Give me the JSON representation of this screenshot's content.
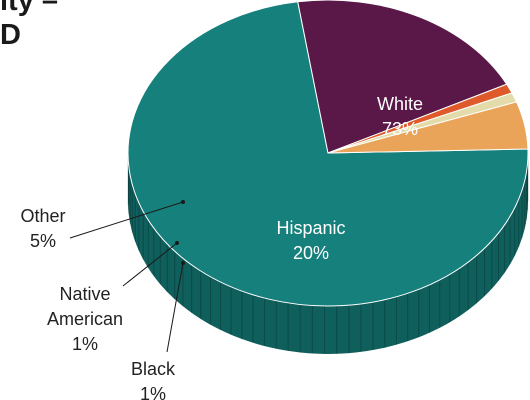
{
  "title_lines": [
    "ity –",
    "D"
  ],
  "chart_data": {
    "type": "pie",
    "categories": [
      "White",
      "Hispanic",
      "Black",
      "Native American",
      "Other"
    ],
    "values": [
      73,
      20,
      1,
      1,
      5
    ],
    "value_labels": [
      "73%",
      "20%",
      "1%",
      "1%",
      "5%"
    ],
    "colors": [
      "#16807c",
      "#5a1848",
      "#de5a2a",
      "#e3dcaa",
      "#e9a45a"
    ],
    "side_colors": [
      "#0f5f5c",
      "#3d0f30",
      "#a8401b",
      "#b3ad82",
      "#b07a3f"
    ]
  }
}
